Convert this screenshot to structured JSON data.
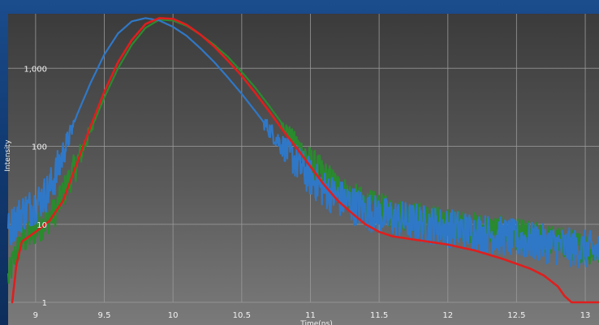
{
  "chart_data": {
    "type": "line",
    "title": "",
    "xlabel": "Time(ns)",
    "ylabel": "Intensity",
    "x_scale": "linear",
    "y_scale": "log",
    "xlim": [
      8.8,
      13.1
    ],
    "ylim": [
      1,
      5000
    ],
    "x_ticks": [
      9,
      9.5,
      10,
      10.5,
      11,
      11.5,
      12,
      12.5,
      13
    ],
    "x_tick_labels": [
      "9",
      "9.5",
      "10",
      "10.5",
      "11",
      "11.5",
      "12",
      "12.5",
      "13"
    ],
    "y_ticks": [
      1,
      10,
      100,
      1000
    ],
    "y_tick_labels": [
      "1",
      "10",
      "100",
      "1,000"
    ],
    "grid": true,
    "legend": "none",
    "series": [
      {
        "color": "#2a8a2e",
        "noise": 0.35,
        "points": [
          [
            8.8,
            2
          ],
          [
            8.85,
            4
          ],
          [
            8.9,
            6
          ],
          [
            8.95,
            7
          ],
          [
            9.0,
            8.5
          ],
          [
            9.05,
            10
          ],
          [
            9.1,
            12
          ],
          [
            9.15,
            15
          ],
          [
            9.2,
            25
          ],
          [
            9.3,
            60
          ],
          [
            9.4,
            160
          ],
          [
            9.5,
            420
          ],
          [
            9.6,
            1000
          ],
          [
            9.7,
            2000
          ],
          [
            9.8,
            3300
          ],
          [
            9.9,
            4200
          ],
          [
            10.0,
            4100
          ],
          [
            10.1,
            3500
          ],
          [
            10.2,
            2700
          ],
          [
            10.3,
            2000
          ],
          [
            10.4,
            1400
          ],
          [
            10.5,
            900
          ],
          [
            10.6,
            560
          ],
          [
            10.7,
            330
          ],
          [
            10.8,
            190
          ],
          [
            10.9,
            110
          ],
          [
            11.0,
            65
          ],
          [
            11.1,
            42
          ],
          [
            11.2,
            30
          ],
          [
            11.3,
            22
          ],
          [
            11.4,
            18
          ],
          [
            11.5,
            16
          ],
          [
            11.6,
            14
          ],
          [
            11.8,
            12
          ],
          [
            12.0,
            10
          ],
          [
            12.2,
            9
          ],
          [
            12.4,
            8
          ],
          [
            12.6,
            7
          ],
          [
            12.8,
            6
          ],
          [
            13.0,
            5
          ],
          [
            13.1,
            4.5
          ]
        ]
      },
      {
        "color": "#2f78c8",
        "noise": 0.45,
        "points": [
          [
            8.8,
            8
          ],
          [
            8.85,
            11
          ],
          [
            8.9,
            14
          ],
          [
            8.95,
            16
          ],
          [
            9.0,
            18
          ],
          [
            9.05,
            22
          ],
          [
            9.1,
            28
          ],
          [
            9.15,
            45
          ],
          [
            9.2,
            80
          ],
          [
            9.25,
            140
          ],
          [
            9.3,
            250
          ],
          [
            9.4,
            650
          ],
          [
            9.5,
            1500
          ],
          [
            9.6,
            2800
          ],
          [
            9.7,
            4000
          ],
          [
            9.8,
            4400
          ],
          [
            9.9,
            4100
          ],
          [
            10.0,
            3400
          ],
          [
            10.1,
            2600
          ],
          [
            10.2,
            1800
          ],
          [
            10.3,
            1200
          ],
          [
            10.4,
            760
          ],
          [
            10.5,
            470
          ],
          [
            10.6,
            280
          ],
          [
            10.7,
            165
          ],
          [
            10.8,
            100
          ],
          [
            10.9,
            62
          ],
          [
            11.0,
            40
          ],
          [
            11.1,
            28
          ],
          [
            11.2,
            22
          ],
          [
            11.3,
            18
          ],
          [
            11.4,
            15
          ],
          [
            11.5,
            13
          ],
          [
            11.7,
            11
          ],
          [
            12.0,
            9
          ],
          [
            12.3,
            7.5
          ],
          [
            12.6,
            6
          ],
          [
            12.9,
            5
          ],
          [
            13.1,
            4.5
          ]
        ]
      },
      {
        "color": "#e01e1e",
        "noise": 0,
        "points": [
          [
            8.83,
            1
          ],
          [
            8.86,
            3
          ],
          [
            8.9,
            6
          ],
          [
            9.0,
            8
          ],
          [
            9.1,
            11
          ],
          [
            9.2,
            20
          ],
          [
            9.3,
            60
          ],
          [
            9.4,
            180
          ],
          [
            9.5,
            500
          ],
          [
            9.6,
            1200
          ],
          [
            9.7,
            2300
          ],
          [
            9.8,
            3700
          ],
          [
            9.9,
            4400
          ],
          [
            10.0,
            4300
          ],
          [
            10.1,
            3600
          ],
          [
            10.2,
            2700
          ],
          [
            10.3,
            1900
          ],
          [
            10.4,
            1250
          ],
          [
            10.5,
            800
          ],
          [
            10.6,
            480
          ],
          [
            10.7,
            280
          ],
          [
            10.8,
            160
          ],
          [
            10.9,
            95
          ],
          [
            11.0,
            55
          ],
          [
            11.1,
            32
          ],
          [
            11.2,
            20
          ],
          [
            11.3,
            14
          ],
          [
            11.4,
            10
          ],
          [
            11.5,
            8
          ],
          [
            11.6,
            7
          ],
          [
            11.8,
            6.2
          ],
          [
            12.0,
            5.5
          ],
          [
            12.2,
            4.6
          ],
          [
            12.4,
            3.6
          ],
          [
            12.6,
            2.7
          ],
          [
            12.7,
            2.2
          ],
          [
            12.8,
            1.6
          ],
          [
            12.85,
            1.2
          ],
          [
            12.9,
            1
          ],
          [
            13.1,
            1
          ]
        ]
      }
    ]
  }
}
